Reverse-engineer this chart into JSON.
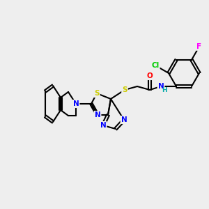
{
  "bg_color": "#eeeeee",
  "bond_color": "#000000",
  "atom_colors": {
    "N": "#0000ff",
    "S": "#cccc00",
    "O": "#ff0000",
    "Cl": "#00cc00",
    "F": "#ff00ff",
    "H": "#00aaaa",
    "C": "#000000"
  },
  "font_size": 7.5,
  "bond_width": 1.5
}
